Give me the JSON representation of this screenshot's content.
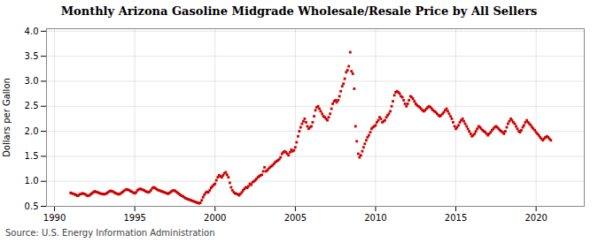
{
  "chart_data": {
    "type": "scatter",
    "title": "Monthly Arizona Gasoline Midgrade Wholesale/Resale Price by All Sellers",
    "ylabel": "Dollars per Gallon",
    "source": "Source: U.S. Energy Information Administration",
    "color": "#cc0000",
    "marker": "square",
    "grid": true,
    "xlim": [
      1989.5,
      2023
    ],
    "ylim": [
      0.5,
      4.05
    ],
    "xticks": [
      1990,
      1995,
      2000,
      2005,
      2010,
      2015,
      2020
    ],
    "yticks": [
      0.5,
      {
        "value": 1.0,
        "label": "1.0"
      },
      1.5,
      {
        "value": 2.0,
        "label": "2.0"
      },
      2.5,
      {
        "value": 3.0,
        "label": "3.0"
      },
      3.5,
      {
        "value": 4.0,
        "label": "4.0"
      }
    ],
    "x": [
      1991.0,
      1991.08,
      1991.17,
      1991.25,
      1991.33,
      1991.42,
      1991.5,
      1991.58,
      1991.67,
      1991.75,
      1991.83,
      1991.92,
      1992.0,
      1992.08,
      1992.17,
      1992.25,
      1992.33,
      1992.42,
      1992.5,
      1992.58,
      1992.67,
      1992.75,
      1992.83,
      1992.92,
      1993.0,
      1993.08,
      1993.17,
      1993.25,
      1993.33,
      1993.42,
      1993.5,
      1993.58,
      1993.67,
      1993.75,
      1993.83,
      1993.92,
      1994.0,
      1994.08,
      1994.17,
      1994.25,
      1994.33,
      1994.42,
      1994.5,
      1994.58,
      1994.67,
      1994.75,
      1994.83,
      1994.92,
      1995.0,
      1995.08,
      1995.17,
      1995.25,
      1995.33,
      1995.42,
      1995.5,
      1995.58,
      1995.67,
      1995.75,
      1995.83,
      1995.92,
      1996.0,
      1996.08,
      1996.17,
      1996.25,
      1996.33,
      1996.42,
      1996.5,
      1996.58,
      1996.67,
      1996.75,
      1996.83,
      1996.92,
      1997.0,
      1997.08,
      1997.17,
      1997.25,
      1997.33,
      1997.42,
      1997.5,
      1997.58,
      1997.67,
      1997.75,
      1997.83,
      1997.92,
      1998.0,
      1998.08,
      1998.17,
      1998.25,
      1998.33,
      1998.42,
      1998.5,
      1998.58,
      1998.67,
      1998.75,
      1998.83,
      1998.92,
      1999.0,
      1999.08,
      1999.17,
      1999.25,
      1999.33,
      1999.42,
      1999.5,
      1999.58,
      1999.67,
      1999.75,
      1999.83,
      1999.92,
      2000.0,
      2000.08,
      2000.17,
      2000.25,
      2000.33,
      2000.42,
      2000.5,
      2000.58,
      2000.67,
      2000.75,
      2000.83,
      2000.92,
      2001.0,
      2001.08,
      2001.17,
      2001.25,
      2001.33,
      2001.42,
      2001.5,
      2001.58,
      2001.67,
      2001.75,
      2001.83,
      2001.92,
      2002.0,
      2002.08,
      2002.17,
      2002.25,
      2002.33,
      2002.42,
      2002.5,
      2002.58,
      2002.67,
      2002.75,
      2002.83,
      2002.92,
      2003.0,
      2003.08,
      2003.17,
      2003.25,
      2003.33,
      2003.42,
      2003.5,
      2003.58,
      2003.67,
      2003.75,
      2003.83,
      2003.92,
      2004.0,
      2004.08,
      2004.17,
      2004.25,
      2004.33,
      2004.42,
      2004.5,
      2004.58,
      2004.67,
      2004.75,
      2004.83,
      2004.92,
      2005.0,
      2005.08,
      2005.17,
      2005.25,
      2005.33,
      2005.42,
      2005.5,
      2005.58,
      2005.67,
      2005.75,
      2005.83,
      2005.92,
      2006.0,
      2006.08,
      2006.17,
      2006.25,
      2006.33,
      2006.42,
      2006.5,
      2006.58,
      2006.67,
      2006.75,
      2006.83,
      2006.92,
      2007.0,
      2007.08,
      2007.17,
      2007.25,
      2007.33,
      2007.42,
      2007.5,
      2007.58,
      2007.67,
      2007.75,
      2007.83,
      2007.92,
      2008.0,
      2008.08,
      2008.17,
      2008.25,
      2008.33,
      2008.42,
      2008.5,
      2008.58,
      2008.67,
      2008.75,
      2008.83,
      2008.92,
      2009.0,
      2009.08,
      2009.17,
      2009.25,
      2009.33,
      2009.42,
      2009.5,
      2009.58,
      2009.67,
      2009.75,
      2009.83,
      2009.92,
      2010.0,
      2010.08,
      2010.17,
      2010.25,
      2010.33,
      2010.42,
      2010.5,
      2010.58,
      2010.67,
      2010.75,
      2010.83,
      2010.92,
      2011.0,
      2011.08,
      2011.17,
      2011.25,
      2011.33,
      2011.42,
      2011.5,
      2011.58,
      2011.67,
      2011.75,
      2011.83,
      2011.92,
      2012.0,
      2012.08,
      2012.17,
      2012.25,
      2012.33,
      2012.42,
      2012.5,
      2012.58,
      2012.67,
      2012.75,
      2012.83,
      2012.92,
      2013.0,
      2013.08,
      2013.17,
      2013.25,
      2013.33,
      2013.42,
      2013.5,
      2013.58,
      2013.67,
      2013.75,
      2013.83,
      2013.92,
      2014.0,
      2014.08,
      2014.17,
      2014.25,
      2014.33,
      2014.42,
      2014.5,
      2014.58,
      2014.67,
      2014.75,
      2014.83,
      2014.92,
      2015.0,
      2015.08,
      2015.17,
      2015.25,
      2015.33,
      2015.42,
      2015.5,
      2015.58,
      2015.67,
      2015.75,
      2015.83,
      2015.92,
      2016.0,
      2016.08,
      2016.17,
      2016.25,
      2016.33,
      2016.42,
      2016.5,
      2016.58,
      2016.67,
      2016.75,
      2016.83,
      2016.92,
      2017.0,
      2017.08,
      2017.17,
      2017.25,
      2017.33,
      2017.42,
      2017.5,
      2017.58,
      2017.67,
      2017.75,
      2017.83,
      2017.92,
      2018.0,
      2018.08,
      2018.17,
      2018.25,
      2018.33,
      2018.42,
      2018.5,
      2018.58,
      2018.67,
      2018.75,
      2018.83,
      2018.92,
      2019.0,
      2019.08,
      2019.17,
      2019.25,
      2019.33,
      2019.42,
      2019.5,
      2019.58,
      2019.67,
      2019.75,
      2019.83,
      2019.92,
      2020.0,
      2020.08,
      2020.17,
      2020.25,
      2020.33,
      2020.42,
      2020.5,
      2020.58,
      2020.67,
      2020.75,
      2020.83,
      2020.92
    ],
    "values": [
      0.77,
      0.76,
      0.75,
      0.74,
      0.73,
      0.71,
      0.72,
      0.74,
      0.75,
      0.76,
      0.75,
      0.74,
      0.72,
      0.71,
      0.72,
      0.74,
      0.76,
      0.78,
      0.8,
      0.79,
      0.78,
      0.77,
      0.76,
      0.75,
      0.75,
      0.74,
      0.75,
      0.76,
      0.78,
      0.8,
      0.81,
      0.8,
      0.79,
      0.77,
      0.76,
      0.75,
      0.74,
      0.75,
      0.77,
      0.79,
      0.81,
      0.83,
      0.84,
      0.83,
      0.82,
      0.8,
      0.79,
      0.77,
      0.76,
      0.78,
      0.82,
      0.84,
      0.85,
      0.84,
      0.83,
      0.82,
      0.8,
      0.79,
      0.78,
      0.79,
      0.82,
      0.86,
      0.88,
      0.87,
      0.85,
      0.83,
      0.82,
      0.81,
      0.8,
      0.79,
      0.78,
      0.77,
      0.76,
      0.75,
      0.77,
      0.79,
      0.81,
      0.82,
      0.81,
      0.79,
      0.77,
      0.75,
      0.73,
      0.71,
      0.7,
      0.68,
      0.66,
      0.65,
      0.64,
      0.63,
      0.62,
      0.61,
      0.6,
      0.59,
      0.58,
      0.57,
      0.56,
      0.57,
      0.62,
      0.68,
      0.73,
      0.77,
      0.79,
      0.78,
      0.82,
      0.87,
      0.9,
      0.93,
      0.95,
      1.02,
      1.08,
      1.12,
      1.1,
      1.08,
      1.12,
      1.16,
      1.18,
      1.13,
      1.08,
      0.97,
      0.88,
      0.82,
      0.78,
      0.76,
      0.75,
      0.74,
      0.72,
      0.75,
      0.78,
      0.82,
      0.85,
      0.88,
      0.87,
      0.9,
      0.95,
      0.93,
      0.98,
      1.0,
      1.02,
      1.05,
      1.08,
      1.1,
      1.12,
      1.13,
      1.2,
      1.28,
      1.2,
      1.22,
      1.25,
      1.28,
      1.3,
      1.32,
      1.35,
      1.38,
      1.4,
      1.42,
      1.44,
      1.48,
      1.55,
      1.58,
      1.6,
      1.58,
      1.55,
      1.52,
      1.58,
      1.63,
      1.6,
      1.62,
      1.68,
      1.78,
      1.9,
      2.0,
      2.08,
      2.15,
      2.2,
      2.25,
      2.18,
      2.1,
      2.05,
      2.08,
      2.1,
      2.18,
      2.3,
      2.42,
      2.48,
      2.5,
      2.45,
      2.4,
      2.35,
      2.3,
      2.28,
      2.25,
      2.22,
      2.28,
      2.35,
      2.45,
      2.55,
      2.6,
      2.62,
      2.58,
      2.62,
      2.7,
      2.8,
      2.9,
      2.95,
      3.05,
      3.18,
      3.22,
      3.3,
      3.58,
      3.2,
      3.15,
      2.85,
      2.1,
      1.8,
      1.55,
      1.48,
      1.52,
      1.6,
      1.68,
      1.75,
      1.82,
      1.88,
      1.92,
      1.98,
      2.05,
      2.08,
      2.1,
      2.12,
      2.18,
      2.22,
      2.28,
      2.25,
      2.18,
      2.2,
      2.22,
      2.28,
      2.32,
      2.35,
      2.4,
      2.5,
      2.6,
      2.72,
      2.78,
      2.8,
      2.78,
      2.75,
      2.7,
      2.68,
      2.62,
      2.55,
      2.5,
      2.55,
      2.62,
      2.7,
      2.68,
      2.65,
      2.6,
      2.55,
      2.52,
      2.5,
      2.48,
      2.45,
      2.42,
      2.4,
      2.42,
      2.45,
      2.48,
      2.5,
      2.48,
      2.45,
      2.42,
      2.4,
      2.38,
      2.35,
      2.32,
      2.3,
      2.32,
      2.35,
      2.38,
      2.42,
      2.45,
      2.4,
      2.35,
      2.3,
      2.25,
      2.18,
      2.1,
      2.05,
      2.08,
      2.12,
      2.18,
      2.22,
      2.25,
      2.2,
      2.15,
      2.1,
      2.05,
      2.0,
      1.95,
      1.9,
      1.92,
      1.95,
      2.0,
      2.05,
      2.1,
      2.08,
      2.05,
      2.02,
      2.0,
      1.98,
      1.95,
      1.92,
      1.95,
      1.98,
      2.02,
      2.05,
      2.08,
      2.1,
      2.08,
      2.05,
      2.02,
      2.0,
      1.98,
      1.95,
      2.0,
      2.08,
      2.15,
      2.2,
      2.25,
      2.22,
      2.18,
      2.15,
      2.1,
      2.05,
      2.0,
      1.98,
      2.02,
      2.08,
      2.12,
      2.18,
      2.22,
      2.18,
      2.15,
      2.12,
      2.08,
      2.05,
      2.02,
      1.98,
      1.95,
      1.92,
      1.88,
      1.85,
      1.82,
      1.85,
      1.88,
      1.9,
      1.88,
      1.85,
      1.82
    ]
  }
}
